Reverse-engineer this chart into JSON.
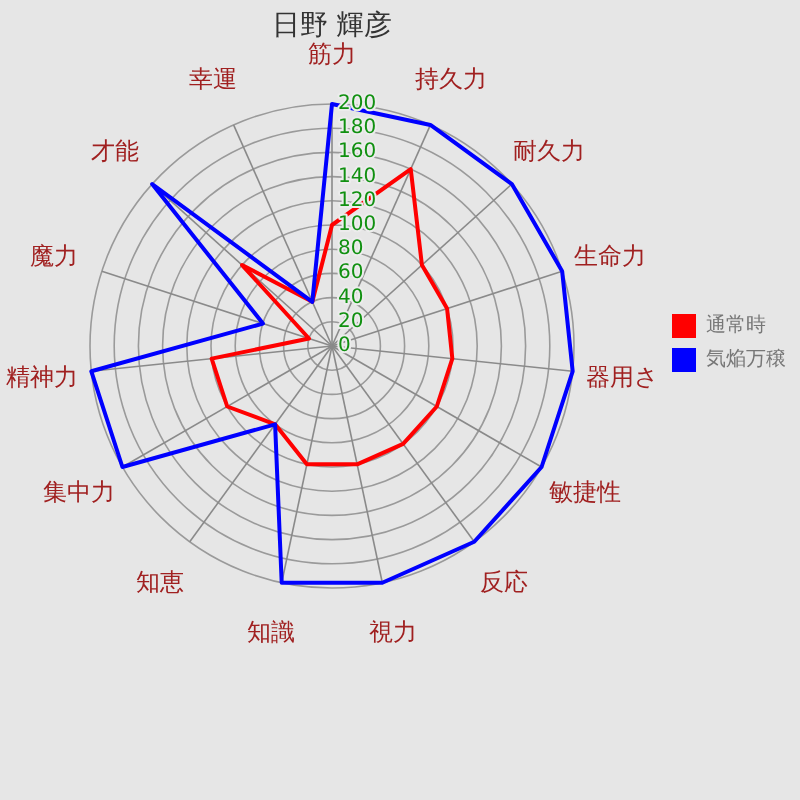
{
  "chart_data": {
    "type": "radar",
    "title": "日野 輝彦",
    "categories": [
      "筋力",
      "持久力",
      "耐久力",
      "生命力",
      "器用さ",
      "敏捷性",
      "反応",
      "視力",
      "知識",
      "知恵",
      "集中力",
      "精神力",
      "魔力",
      "才能",
      "幸運"
    ],
    "series": [
      {
        "name": "通常時",
        "color": "#ff0000",
        "values": [
          100,
          160,
          100,
          100,
          100,
          100,
          100,
          100,
          100,
          80,
          100,
          100,
          20,
          100,
          40
        ]
      },
      {
        "name": "気焔万穣",
        "color": "#0000ff",
        "values": [
          200,
          200,
          200,
          200,
          200,
          200,
          200,
          200,
          200,
          80,
          200,
          200,
          60,
          200,
          40
        ]
      }
    ],
    "ylim": [
      0,
      200
    ],
    "yticks": [
      0,
      20,
      40,
      60,
      80,
      100,
      120,
      140,
      160,
      180,
      200
    ],
    "grid": true,
    "legend": "right"
  }
}
